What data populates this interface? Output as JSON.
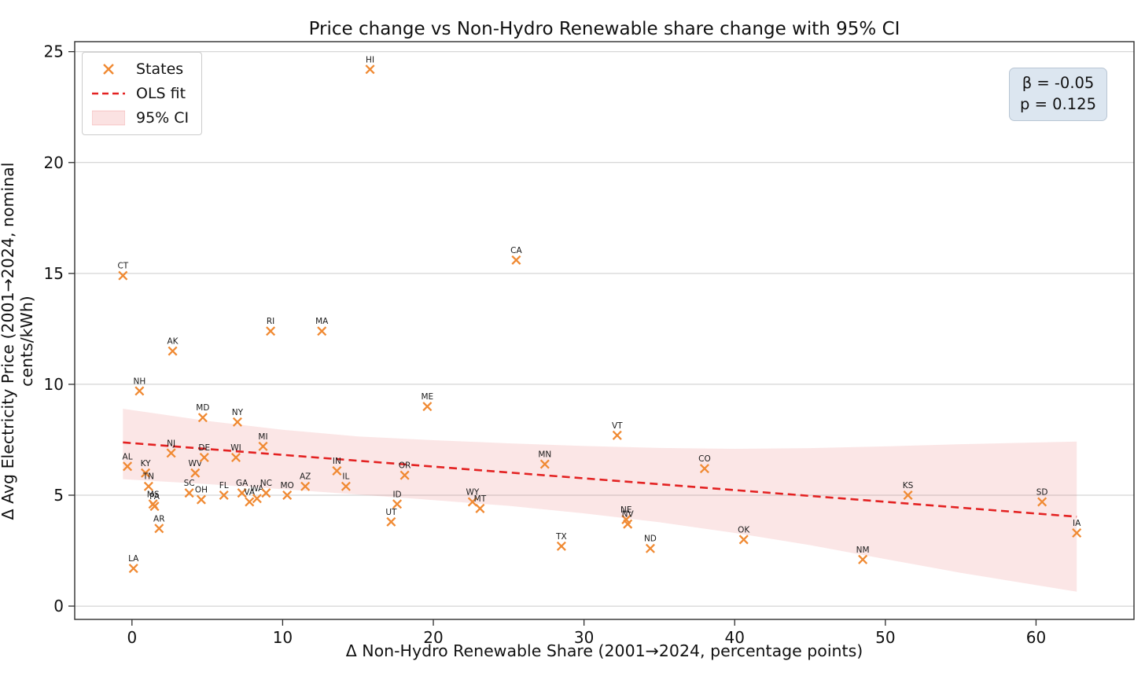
{
  "title": "Price change vs Non-Hydro Renewable share change with 95% CI",
  "stats_box": {
    "line1": "β = -0.05",
    "line2": "p = 0.125"
  },
  "legend": {
    "states_label": "States",
    "ols_label": "OLS fit",
    "ci_label": "95% CI"
  },
  "colors": {
    "marker_orange": "#f08a33",
    "ols_red": "#e32222",
    "ci_fill": "rgba(228,77,77,0.14)",
    "gridline": "#cbcbcb",
    "spine": "#2f2f2f",
    "label_text": "#1a1a1a",
    "stats_bg": "#dce6f0"
  },
  "chart_data": {
    "type": "scatter",
    "title": "Price change vs Non-Hydro Renewable share change with 95% CI",
    "xlabel": "Δ Non-Hydro Renewable Share (2001→2024, percentage points)",
    "ylabel": "Δ Avg Electricity Price (2001→2024, nominal cents/kWh)",
    "xlim": [
      -3.8,
      66.5
    ],
    "ylim": [
      -0.6,
      25.45
    ],
    "xticks": [
      0,
      10,
      20,
      30,
      40,
      50,
      60
    ],
    "yticks": [
      0,
      5,
      10,
      15,
      20,
      25
    ],
    "grid": "horizontal",
    "legend_position": "upper-left",
    "points": [
      {
        "state": "CT",
        "x": -0.6,
        "y": 14.9
      },
      {
        "state": "AL",
        "x": -0.3,
        "y": 6.3
      },
      {
        "state": "LA",
        "x": 0.1,
        "y": 1.7
      },
      {
        "state": "NH",
        "x": 0.5,
        "y": 9.7
      },
      {
        "state": "KY",
        "x": 0.9,
        "y": 6.0
      },
      {
        "state": "TN",
        "x": 1.1,
        "y": 5.4
      },
      {
        "state": "MS",
        "x": 1.4,
        "y": 4.6
      },
      {
        "state": "PA",
        "x": 1.5,
        "y": 4.5
      },
      {
        "state": "AR",
        "x": 1.8,
        "y": 3.5
      },
      {
        "state": "NJ",
        "x": 2.6,
        "y": 6.9
      },
      {
        "state": "AK",
        "x": 2.7,
        "y": 11.5
      },
      {
        "state": "SC",
        "x": 3.8,
        "y": 5.1
      },
      {
        "state": "WV",
        "x": 4.2,
        "y": 6.0
      },
      {
        "state": "OH",
        "x": 4.6,
        "y": 4.8
      },
      {
        "state": "MD",
        "x": 4.7,
        "y": 8.5
      },
      {
        "state": "DE",
        "x": 4.8,
        "y": 6.7
      },
      {
        "state": "FL",
        "x": 6.1,
        "y": 5.0
      },
      {
        "state": "WI",
        "x": 6.9,
        "y": 6.7
      },
      {
        "state": "NY",
        "x": 7.0,
        "y": 8.3
      },
      {
        "state": "GA",
        "x": 7.3,
        "y": 5.1
      },
      {
        "state": "VA",
        "x": 7.8,
        "y": 4.7
      },
      {
        "state": "WA",
        "x": 8.3,
        "y": 4.85
      },
      {
        "state": "MI",
        "x": 8.7,
        "y": 7.2
      },
      {
        "state": "NC",
        "x": 8.9,
        "y": 5.1
      },
      {
        "state": "RI",
        "x": 9.2,
        "y": 12.4
      },
      {
        "state": "MO",
        "x": 10.3,
        "y": 5.0
      },
      {
        "state": "AZ",
        "x": 11.5,
        "y": 5.4
      },
      {
        "state": "MA",
        "x": 12.6,
        "y": 12.4
      },
      {
        "state": "IN",
        "x": 13.6,
        "y": 6.1
      },
      {
        "state": "IL",
        "x": 14.2,
        "y": 5.4
      },
      {
        "state": "HI",
        "x": 15.8,
        "y": 24.2
      },
      {
        "state": "UT",
        "x": 17.2,
        "y": 3.8
      },
      {
        "state": "ID",
        "x": 17.6,
        "y": 4.6
      },
      {
        "state": "OR",
        "x": 18.1,
        "y": 5.9
      },
      {
        "state": "ME",
        "x": 19.6,
        "y": 9.0
      },
      {
        "state": "WY",
        "x": 22.6,
        "y": 4.7
      },
      {
        "state": "MT",
        "x": 23.1,
        "y": 4.4
      },
      {
        "state": "CA",
        "x": 25.5,
        "y": 15.6
      },
      {
        "state": "MN",
        "x": 27.4,
        "y": 6.4
      },
      {
        "state": "TX",
        "x": 28.5,
        "y": 2.7
      },
      {
        "state": "VT",
        "x": 32.2,
        "y": 7.7
      },
      {
        "state": "NE",
        "x": 32.8,
        "y": 3.9
      },
      {
        "state": "NV",
        "x": 32.9,
        "y": 3.7
      },
      {
        "state": "ND",
        "x": 34.4,
        "y": 2.6
      },
      {
        "state": "CO",
        "x": 38.0,
        "y": 6.2
      },
      {
        "state": "OK",
        "x": 40.6,
        "y": 3.0
      },
      {
        "state": "NM",
        "x": 48.5,
        "y": 2.1
      },
      {
        "state": "KS",
        "x": 51.5,
        "y": 5.0
      },
      {
        "state": "SD",
        "x": 60.4,
        "y": 4.7
      },
      {
        "state": "IA",
        "x": 62.7,
        "y": 3.3
      }
    ],
    "ols_fit": {
      "beta": -0.05,
      "p_value": 0.125,
      "x": [
        -0.6,
        62.7
      ],
      "y": [
        7.38,
        4.03
      ]
    },
    "ci_band": {
      "upper": [
        [
          -0.6,
          8.9
        ],
        [
          5,
          8.35
        ],
        [
          10,
          7.95
        ],
        [
          15,
          7.65
        ],
        [
          20,
          7.48
        ],
        [
          25,
          7.34
        ],
        [
          30,
          7.22
        ],
        [
          35,
          7.13
        ],
        [
          40,
          7.09
        ],
        [
          45,
          7.12
        ],
        [
          50,
          7.2
        ],
        [
          55,
          7.3
        ],
        [
          62.7,
          7.42
        ]
      ],
      "lower": [
        [
          -0.6,
          5.72
        ],
        [
          5,
          5.5
        ],
        [
          10,
          5.27
        ],
        [
          15,
          5.03
        ],
        [
          20,
          4.78
        ],
        [
          25,
          4.52
        ],
        [
          30,
          4.18
        ],
        [
          35,
          3.78
        ],
        [
          40,
          3.3
        ],
        [
          45,
          2.75
        ],
        [
          50,
          2.12
        ],
        [
          55,
          1.5
        ],
        [
          62.7,
          0.65
        ]
      ]
    }
  }
}
